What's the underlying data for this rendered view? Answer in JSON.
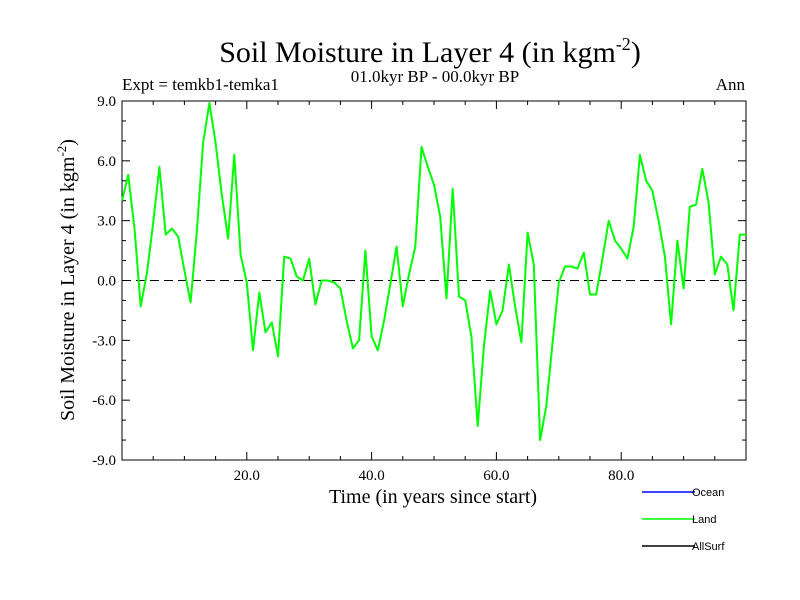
{
  "chart_data": {
    "type": "line",
    "title": "Soil Moisture in Layer 4 (in kgm",
    "title_exp": "-2",
    "title_close": ")",
    "subtitle_left": "Expt = temkb1-temka1",
    "subtitle_center": "01.0kyr BP - 00.0kyr BP",
    "subtitle_right": "Ann",
    "xlabel": "Time (in years since start)",
    "ylabel": "Soil Moisture in Layer 4 (in kgm",
    "ylabel_exp": "-2",
    "ylabel_close": ")",
    "xlim": [
      0,
      100
    ],
    "ylim": [
      -9,
      9
    ],
    "xticks": [
      20,
      40,
      60,
      80
    ],
    "xtick_labels": [
      "20.0",
      "40.0",
      "60.0",
      "80.0"
    ],
    "yticks": [
      9,
      6,
      3,
      0,
      -3,
      -6,
      -9
    ],
    "ytick_labels": [
      "9.0",
      "6.0",
      "3.0",
      "0.0",
      "-3.0",
      "-6.0",
      "-9.0"
    ],
    "zero_line": 0,
    "legend": [
      {
        "name": "Ocean",
        "color": "#0000ff"
      },
      {
        "name": "Land",
        "color": "#00ff00"
      },
      {
        "name": "AllSurf",
        "color": "#000000"
      }
    ],
    "series": [
      {
        "name": "Land",
        "color": "#00ff00",
        "x": [
          0,
          1,
          2,
          3,
          4,
          5,
          6,
          7,
          8,
          9,
          10,
          11,
          12,
          13,
          14,
          15,
          16,
          17,
          18,
          19,
          20,
          21,
          22,
          23,
          24,
          25,
          26,
          27,
          28,
          29,
          30,
          31,
          32,
          33,
          34,
          35,
          36,
          37,
          38,
          39,
          40,
          41,
          42,
          43,
          44,
          45,
          46,
          47,
          48,
          49,
          50,
          51,
          52,
          53,
          54,
          55,
          56,
          57,
          58,
          59,
          60,
          61,
          62,
          63,
          64,
          65,
          66,
          67,
          68,
          69,
          70,
          71,
          72,
          73,
          74,
          75,
          76,
          77,
          78,
          79,
          80,
          81,
          82,
          83,
          84,
          85,
          86,
          87,
          88,
          89,
          90,
          91,
          92,
          93,
          94,
          95,
          96,
          97,
          98,
          99,
          100
        ],
        "values": [
          4.0,
          5.3,
          2.6,
          -1.3,
          0.4,
          2.9,
          5.7,
          2.3,
          2.6,
          2.2,
          0.5,
          -1.1,
          2.5,
          6.9,
          8.9,
          6.9,
          4.3,
          2.1,
          6.3,
          1.3,
          -0.1,
          -3.5,
          -0.6,
          -2.6,
          -2.1,
          -3.8,
          1.2,
          1.1,
          0.2,
          0.0,
          1.1,
          -1.2,
          0.0,
          0.0,
          -0.1,
          -0.4,
          -2.0,
          -3.4,
          -3.0,
          1.5,
          -2.8,
          -3.5,
          -2.0,
          -0.2,
          1.7,
          -1.3,
          0.3,
          1.7,
          6.7,
          5.7,
          4.8,
          3.2,
          -0.9,
          4.6,
          -0.8,
          -1.0,
          -2.8,
          -7.3,
          -3.3,
          -0.5,
          -2.2,
          -1.5,
          0.8,
          -1.3,
          -3.1,
          2.4,
          0.8,
          -8.0,
          -6.3,
          -3.1,
          -0.1,
          0.7,
          0.7,
          0.6,
          1.4,
          -0.7,
          -0.7,
          1.1,
          3.0,
          2.0,
          1.6,
          1.1,
          2.7,
          6.3,
          5.0,
          4.5,
          3.0,
          1.2,
          -2.2,
          2.0,
          -0.4,
          3.7,
          3.8,
          5.6,
          3.9,
          0.3,
          1.2,
          0.8,
          -1.5,
          2.3,
          2.3
        ]
      }
    ]
  }
}
